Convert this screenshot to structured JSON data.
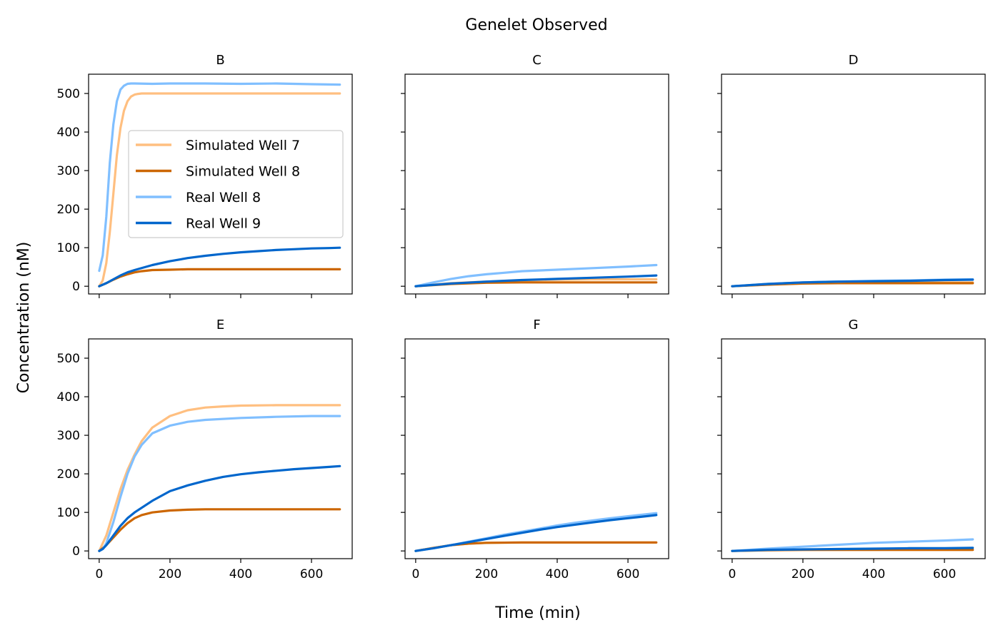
{
  "figure": {
    "title": "Genelet Observed",
    "xlabel": "Time (min)",
    "ylabel": "Concentration (nM)"
  },
  "legend": {
    "placement": "center-right of panel B",
    "entries": [
      {
        "label": "Simulated Well 7",
        "color": "#ffbf80"
      },
      {
        "label": "Simulated Well 8",
        "color": "#cc6600"
      },
      {
        "label": "Real Well 8",
        "color": "#80bfff"
      },
      {
        "label": "Real Well 9",
        "color": "#0066cc"
      }
    ]
  },
  "chart_data": [
    {
      "type": "line",
      "title": "B",
      "xlim": [
        -30,
        715
      ],
      "ylim": [
        -20,
        550
      ],
      "xticks": [
        0,
        200,
        400,
        600
      ],
      "yticks": [
        0,
        100,
        200,
        300,
        400,
        500
      ],
      "series": [
        {
          "name": "Simulated Well 7",
          "color": "#ffbf80",
          "x": [
            0,
            10,
            20,
            30,
            40,
            50,
            60,
            70,
            80,
            90,
            100,
            110,
            120,
            150,
            200,
            300,
            400,
            500,
            600,
            680
          ],
          "y": [
            0,
            15,
            60,
            140,
            240,
            340,
            410,
            455,
            480,
            492,
            497,
            499,
            500,
            500,
            500,
            500,
            500,
            500,
            500,
            500
          ]
        },
        {
          "name": "Simulated Well 8",
          "color": "#cc6600",
          "x": [
            0,
            20,
            40,
            60,
            80,
            100,
            120,
            150,
            200,
            250,
            300,
            400,
            500,
            600,
            680
          ],
          "y": [
            0,
            8,
            17,
            25,
            31,
            36,
            39,
            42,
            43,
            44,
            44,
            44,
            44,
            44,
            44
          ]
        },
        {
          "name": "Real Well 8",
          "color": "#80bfff",
          "x": [
            0,
            5,
            10,
            20,
            30,
            40,
            50,
            60,
            70,
            80,
            90,
            100,
            150,
            200,
            300,
            400,
            500,
            600,
            680
          ],
          "y": [
            40,
            60,
            80,
            180,
            320,
            420,
            480,
            510,
            520,
            525,
            526,
            526,
            525,
            526,
            526,
            525,
            526,
            524,
            523
          ]
        },
        {
          "name": "Real Well 9",
          "color": "#0066cc",
          "x": [
            0,
            20,
            40,
            60,
            80,
            100,
            150,
            200,
            250,
            300,
            350,
            400,
            450,
            500,
            550,
            600,
            650,
            680
          ],
          "y": [
            0,
            8,
            18,
            28,
            36,
            42,
            55,
            65,
            73,
            79,
            84,
            88,
            91,
            94,
            96,
            98,
            99,
            100
          ]
        }
      ]
    },
    {
      "type": "line",
      "title": "C",
      "xlim": [
        -30,
        715
      ],
      "ylim": [
        -20,
        550
      ],
      "xticks": [
        0,
        200,
        400,
        600
      ],
      "yticks": [
        0,
        100,
        200,
        300,
        400,
        500
      ],
      "series": [
        {
          "name": "Simulated Well 7",
          "color": "#ffbf80",
          "x": [
            0,
            100,
            200,
            300,
            400,
            500,
            600,
            680
          ],
          "y": [
            0,
            8,
            12,
            15,
            17,
            18,
            18,
            18
          ]
        },
        {
          "name": "Simulated Well 8",
          "color": "#cc6600",
          "x": [
            0,
            100,
            200,
            300,
            400,
            500,
            600,
            680
          ],
          "y": [
            0,
            6,
            9,
            10,
            10,
            10,
            10,
            10
          ]
        },
        {
          "name": "Real Well 8",
          "color": "#80bfff",
          "x": [
            0,
            50,
            100,
            150,
            200,
            250,
            300,
            400,
            500,
            600,
            680
          ],
          "y": [
            0,
            10,
            19,
            26,
            31,
            35,
            39,
            43,
            47,
            51,
            55
          ]
        },
        {
          "name": "Real Well 9",
          "color": "#0066cc",
          "x": [
            0,
            100,
            200,
            300,
            400,
            500,
            600,
            680
          ],
          "y": [
            0,
            7,
            12,
            16,
            19,
            22,
            25,
            28
          ]
        }
      ]
    },
    {
      "type": "line",
      "title": "D",
      "xlim": [
        -30,
        715
      ],
      "ylim": [
        -20,
        550
      ],
      "xticks": [
        0,
        200,
        400,
        600
      ],
      "yticks": [
        0,
        100,
        200,
        300,
        400,
        500
      ],
      "series": [
        {
          "name": "Simulated Well 7",
          "color": "#ffbf80",
          "x": [
            0,
            100,
            200,
            300,
            400,
            500,
            600,
            680
          ],
          "y": [
            0,
            5,
            8,
            9,
            10,
            10,
            10,
            10
          ]
        },
        {
          "name": "Simulated Well 8",
          "color": "#cc6600",
          "x": [
            0,
            100,
            200,
            300,
            400,
            500,
            600,
            680
          ],
          "y": [
            0,
            4,
            7,
            8,
            8,
            8,
            8,
            8
          ]
        },
        {
          "name": "Real Well 8",
          "color": "#80bfff",
          "x": [
            0,
            100,
            200,
            300,
            400,
            500,
            600,
            680
          ],
          "y": [
            0,
            6,
            10,
            12,
            14,
            15,
            17,
            18
          ]
        },
        {
          "name": "Real Well 9",
          "color": "#0066cc",
          "x": [
            0,
            100,
            200,
            300,
            400,
            500,
            600,
            680
          ],
          "y": [
            0,
            6,
            10,
            12,
            13,
            14,
            16,
            17
          ]
        }
      ]
    },
    {
      "type": "line",
      "title": "E",
      "xlim": [
        -30,
        715
      ],
      "ylim": [
        -20,
        550
      ],
      "xticks": [
        0,
        200,
        400,
        600
      ],
      "yticks": [
        0,
        100,
        200,
        300,
        400,
        500
      ],
      "series": [
        {
          "name": "Simulated Well 7",
          "color": "#ffbf80",
          "x": [
            0,
            20,
            40,
            60,
            80,
            100,
            120,
            150,
            200,
            250,
            300,
            350,
            400,
            500,
            600,
            680
          ],
          "y": [
            0,
            40,
            100,
            160,
            210,
            250,
            285,
            320,
            350,
            365,
            372,
            375,
            377,
            378,
            378,
            378
          ]
        },
        {
          "name": "Simulated Well 8",
          "color": "#cc6600",
          "x": [
            0,
            20,
            40,
            60,
            80,
            100,
            120,
            150,
            200,
            250,
            300,
            400,
            500,
            600,
            680
          ],
          "y": [
            0,
            15,
            35,
            55,
            72,
            85,
            93,
            100,
            105,
            107,
            108,
            108,
            108,
            108,
            108
          ]
        },
        {
          "name": "Real Well 8",
          "color": "#80bfff",
          "x": [
            0,
            10,
            20,
            40,
            60,
            80,
            100,
            120,
            150,
            200,
            250,
            300,
            400,
            500,
            600,
            680
          ],
          "y": [
            0,
            5,
            20,
            75,
            140,
            200,
            245,
            275,
            305,
            325,
            335,
            340,
            345,
            348,
            350,
            350
          ]
        },
        {
          "name": "Real Well 9",
          "color": "#0066cc",
          "x": [
            0,
            10,
            20,
            40,
            60,
            80,
            100,
            150,
            200,
            250,
            300,
            350,
            400,
            450,
            500,
            550,
            600,
            650,
            680
          ],
          "y": [
            0,
            5,
            15,
            40,
            65,
            85,
            100,
            130,
            155,
            170,
            182,
            192,
            199,
            204,
            208,
            212,
            215,
            218,
            220
          ]
        }
      ]
    },
    {
      "type": "line",
      "title": "F",
      "xlim": [
        -30,
        715
      ],
      "ylim": [
        -20,
        550
      ],
      "xticks": [
        0,
        200,
        400,
        600
      ],
      "yticks": [
        0,
        100,
        200,
        300,
        400,
        500
      ],
      "series": [
        {
          "name": "Simulated Well 7",
          "color": "#ffbf80",
          "x": [
            0,
            50,
            100,
            150,
            200,
            300,
            400,
            500,
            600,
            680
          ],
          "y": [
            0,
            8,
            15,
            19,
            21,
            22,
            22,
            22,
            22,
            22
          ]
        },
        {
          "name": "Simulated Well 8",
          "color": "#cc6600",
          "x": [
            0,
            50,
            100,
            150,
            200,
            300,
            400,
            500,
            600,
            680
          ],
          "y": [
            0,
            8,
            15,
            19,
            21,
            22,
            22,
            22,
            22,
            22
          ]
        },
        {
          "name": "Real Well 8",
          "color": "#80bfff",
          "x": [
            0,
            50,
            100,
            150,
            200,
            250,
            300,
            350,
            400,
            450,
            500,
            550,
            600,
            650,
            680
          ],
          "y": [
            0,
            7,
            15,
            24,
            33,
            42,
            50,
            58,
            66,
            73,
            79,
            85,
            90,
            95,
            98
          ]
        },
        {
          "name": "Real Well 9",
          "color": "#0066cc",
          "x": [
            0,
            50,
            100,
            150,
            200,
            250,
            300,
            350,
            400,
            450,
            500,
            550,
            600,
            650,
            680
          ],
          "y": [
            0,
            7,
            15,
            23,
            31,
            39,
            47,
            55,
            62,
            68,
            74,
            80,
            85,
            90,
            93
          ]
        }
      ]
    },
    {
      "type": "line",
      "title": "G",
      "xlim": [
        -30,
        715
      ],
      "ylim": [
        -20,
        550
      ],
      "xticks": [
        0,
        200,
        400,
        600
      ],
      "yticks": [
        0,
        100,
        200,
        300,
        400,
        500
      ],
      "series": [
        {
          "name": "Simulated Well 7",
          "color": "#ffbf80",
          "x": [
            0,
            100,
            200,
            300,
            400,
            500,
            600,
            680
          ],
          "y": [
            0,
            2,
            3,
            3,
            3,
            3,
            3,
            3
          ]
        },
        {
          "name": "Simulated Well 8",
          "color": "#cc6600",
          "x": [
            0,
            100,
            200,
            300,
            400,
            500,
            600,
            680
          ],
          "y": [
            0,
            2,
            3,
            3,
            3,
            3,
            3,
            3
          ]
        },
        {
          "name": "Real Well 8",
          "color": "#80bfff",
          "x": [
            0,
            100,
            200,
            300,
            400,
            500,
            600,
            680
          ],
          "y": [
            0,
            6,
            11,
            16,
            21,
            24,
            27,
            30
          ]
        },
        {
          "name": "Real Well 9",
          "color": "#0066cc",
          "x": [
            0,
            100,
            200,
            300,
            400,
            500,
            600,
            680
          ],
          "y": [
            0,
            3,
            4,
            5,
            6,
            7,
            7,
            8
          ]
        }
      ]
    }
  ]
}
